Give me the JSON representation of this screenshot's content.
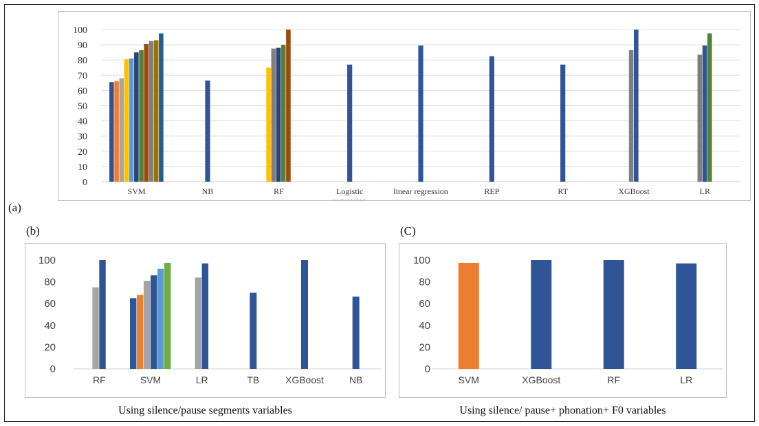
{
  "panel_labels": {
    "a": "(a)",
    "b": "(b)",
    "c": "(C)"
  },
  "captions": {
    "b": "Using silence/pause segments variables",
    "c": "Using silence/ pause+ phonation+ F0 variables"
  },
  "colors": {
    "blue": "#2f5597",
    "orange": "#ed7d31",
    "gray": "#a5a5a5",
    "yellow": "#ffc000",
    "lightblue": "#5b9bd5",
    "green": "#70ad47",
    "darkgray": "#7f7f7f",
    "brown": "#9e480e",
    "olive": "#997300",
    "steel": "#264478",
    "darkgreen": "#548235"
  },
  "chart_data": [
    {
      "id": "a",
      "type": "bar",
      "ylim": [
        0,
        100
      ],
      "yticks": [
        0,
        10,
        20,
        30,
        40,
        50,
        60,
        70,
        80,
        90,
        100
      ],
      "grid": true,
      "categories": [
        {
          "label": "SVM",
          "bars": [
            {
              "value": 65.5,
              "color": "#2f5597"
            },
            {
              "value": 66,
              "color": "#ed7d31"
            },
            {
              "value": 68,
              "color": "#a5a5a5"
            },
            {
              "value": 80.5,
              "color": "#ffc000"
            },
            {
              "value": 81,
              "color": "#5b9bd5"
            },
            {
              "value": 85,
              "color": "#264478"
            },
            {
              "value": 86.5,
              "color": "#548235"
            },
            {
              "value": 90.5,
              "color": "#9e480e"
            },
            {
              "value": 92.5,
              "color": "#7f7f7f"
            },
            {
              "value": 93,
              "color": "#997300"
            },
            {
              "value": 97.5,
              "color": "#255e91"
            }
          ]
        },
        {
          "label": "NB",
          "bars": [
            {
              "value": 66.5,
              "color": "#2f5597"
            }
          ]
        },
        {
          "label": "RF",
          "bars": [
            {
              "value": 75,
              "color": "#ffc000"
            },
            {
              "value": 87.5,
              "color": "#7f7f7f"
            },
            {
              "value": 88,
              "color": "#264478"
            },
            {
              "value": 90,
              "color": "#548235"
            },
            {
              "value": 100,
              "color": "#9e480e"
            }
          ]
        },
        {
          "label": "Logistic regression",
          "bars": [
            {
              "value": 77,
              "color": "#2f5597"
            }
          ]
        },
        {
          "label": "linear regression",
          "bars": [
            {
              "value": 89.5,
              "color": "#2f5597"
            }
          ]
        },
        {
          "label": "REP",
          "bars": [
            {
              "value": 82.5,
              "color": "#2f5597"
            }
          ]
        },
        {
          "label": "RT",
          "bars": [
            {
              "value": 77,
              "color": "#2f5597"
            }
          ]
        },
        {
          "label": "XGBoost",
          "bars": [
            {
              "value": 86.5,
              "color": "#7f7f7f"
            },
            {
              "value": 100,
              "color": "#2f5597"
            }
          ]
        },
        {
          "label": "LR",
          "bars": [
            {
              "value": 83.5,
              "color": "#7f7f7f"
            },
            {
              "value": 89.5,
              "color": "#2f5597"
            },
            {
              "value": 97.5,
              "color": "#548235"
            }
          ]
        }
      ]
    },
    {
      "id": "b",
      "type": "bar",
      "ylim": [
        0,
        100
      ],
      "yticks": [
        0,
        20,
        40,
        60,
        80,
        100
      ],
      "grid": false,
      "categories": [
        {
          "label": "RF",
          "bars": [
            {
              "value": 75,
              "color": "#a5a5a5"
            },
            {
              "value": 100,
              "color": "#2f5597"
            }
          ]
        },
        {
          "label": "SVM",
          "bars": [
            {
              "value": 65,
              "color": "#2f5597"
            },
            {
              "value": 68,
              "color": "#ed7d31"
            },
            {
              "value": 81,
              "color": "#a5a5a5"
            },
            {
              "value": 86,
              "color": "#2f5597"
            },
            {
              "value": 92,
              "color": "#5b9bd5"
            },
            {
              "value": 97.5,
              "color": "#70ad47"
            }
          ]
        },
        {
          "label": "LR",
          "bars": [
            {
              "value": 84,
              "color": "#a5a5a5"
            },
            {
              "value": 97,
              "color": "#2f5597"
            }
          ]
        },
        {
          "label": "TB",
          "bars": [
            {
              "value": 70,
              "color": "#2f5597"
            }
          ]
        },
        {
          "label": "XGBoost",
          "bars": [
            {
              "value": 100,
              "color": "#2f5597"
            }
          ]
        },
        {
          "label": "NB",
          "bars": [
            {
              "value": 66.5,
              "color": "#2f5597"
            }
          ]
        }
      ]
    },
    {
      "id": "c",
      "type": "bar",
      "ylim": [
        0,
        100
      ],
      "yticks": [
        0,
        20,
        40,
        60,
        80,
        100
      ],
      "grid": false,
      "categories": [
        {
          "label": "SVM",
          "bars": [
            {
              "value": 97.5,
              "color": "#ed7d31"
            }
          ]
        },
        {
          "label": "XGBoost",
          "bars": [
            {
              "value": 100,
              "color": "#2f5597"
            }
          ]
        },
        {
          "label": "RF",
          "bars": [
            {
              "value": 100,
              "color": "#2f5597"
            }
          ]
        },
        {
          "label": "LR",
          "bars": [
            {
              "value": 97,
              "color": "#2f5597"
            }
          ]
        }
      ]
    }
  ]
}
